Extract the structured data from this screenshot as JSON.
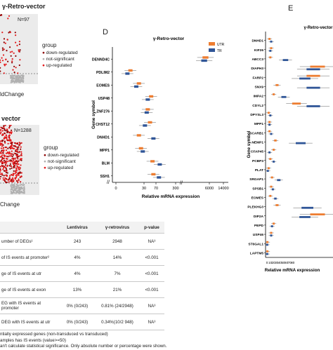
{
  "volcano_a": {
    "title": "γ-Retro-vector",
    "n_label": "N=97",
    "xlabel": "ldChange",
    "legend_title": "group",
    "legend_items": [
      "down-regulated",
      "not-significant",
      "up-regulated"
    ]
  },
  "volcano_b": {
    "title": "vector",
    "n_label": "N=1288",
    "xlabel": "Change",
    "legend_title": "group",
    "legend_items": [
      "down-regulated",
      "not-significant",
      "up-regulated"
    ]
  },
  "table": {
    "headers": [
      "",
      "Lentivirus",
      "γ-retrovirus",
      "p-value"
    ],
    "rows": [
      [
        "umber of DEGs¹",
        "243",
        "2948",
        "NA³"
      ],
      [
        "of IS events at promoter²",
        "4%",
        "14%",
        "<0.001"
      ],
      [
        "ge of IS events at utr",
        "4%",
        "7%",
        "<0.001"
      ],
      [
        "ge of IS events at exon",
        "13%",
        "21%",
        "<0.001"
      ],
      [
        "EG with IS events at promoter",
        "0% (0/243)",
        "0.81% (24/2948)",
        "NA³"
      ],
      [
        "DEG with IS events at utr",
        "0% (0/243)",
        "0.34%(10/2 948)",
        "NA³"
      ]
    ],
    "footnotes": [
      "ntially expressed genes (non-transduced vs transduced)",
      "amples has IS events (value>=50)",
      "an't calculate statistical significance. Only absolute number or percentage were shown."
    ]
  },
  "colors": {
    "utr": "#ed7d31",
    "tr": "#2f5597",
    "down": "#8b0000",
    "up": "#e41a1c",
    "ns": "#b0b0b0"
  },
  "chart_data": [
    {
      "type": "bar",
      "panel": "D",
      "title": "γ-Retro-vector",
      "xlabel": "Relative mRNA expression",
      "ylabel": "Gene symbol",
      "x_ticks": [
        "0",
        "30",
        "70",
        "300",
        "6000",
        "14000"
      ],
      "legend": [
        "UTR",
        "TR"
      ],
      "categories": [
        "DENND4C",
        "PDLIM2",
        "EOMES",
        "USP48",
        "ZNF276",
        "CHST12",
        "DNHD1",
        "MPP1",
        "BLM",
        "SSH1"
      ],
      "series": [
        {
          "name": "UTR",
          "values": [
            7000,
            3,
            8,
            28,
            20,
            25,
            8,
            10,
            32,
            35
          ]
        },
        {
          "name": "TR",
          "values": [
            6500,
            2,
            6,
            20,
            18,
            15,
            35,
            12,
            65,
            60
          ]
        }
      ]
    },
    {
      "type": "bar",
      "panel": "E",
      "title": "γ-Retro-vector",
      "xlabel": "Relative mRNA expression",
      "ylabel": "Gene symbol",
      "x_ticks": [
        "0",
        "10",
        "20",
        "30",
        "40",
        "50",
        "60",
        "70",
        "80"
      ],
      "categories": [
        "DNHD1",
        "KIF26",
        "ABCC3",
        "DIAPH3",
        "FARP2",
        "SNX9",
        "IMPA2",
        "CDYL2",
        "DPYSL3",
        "MPP1",
        "SCARB1",
        "NEMP1",
        "CFAP45",
        "PCBP3",
        "PLAT",
        "SRGAP1",
        "SPSB1",
        "EOMES",
        "PLEKHG3",
        "DIP2A",
        "PEPD",
        "USP46",
        "ST6GAL1",
        "LAPTM5"
      ],
      "series": [
        {
          "name": "UTR",
          "values": [
            3,
            5,
            4,
            60,
            55,
            12,
            8,
            35,
            2,
            3,
            3,
            10,
            8,
            4,
            2,
            6,
            5,
            4,
            12,
            60,
            8,
            5,
            0.5,
            0.5
          ]
        },
        {
          "name": "TR",
          "values": [
            5,
            4,
            22,
            55,
            45,
            55,
            20,
            55,
            4,
            3,
            5,
            40,
            3,
            8,
            1,
            14,
            7,
            10,
            48,
            45,
            6,
            5,
            0.3,
            0.3
          ]
        }
      ]
    }
  ]
}
